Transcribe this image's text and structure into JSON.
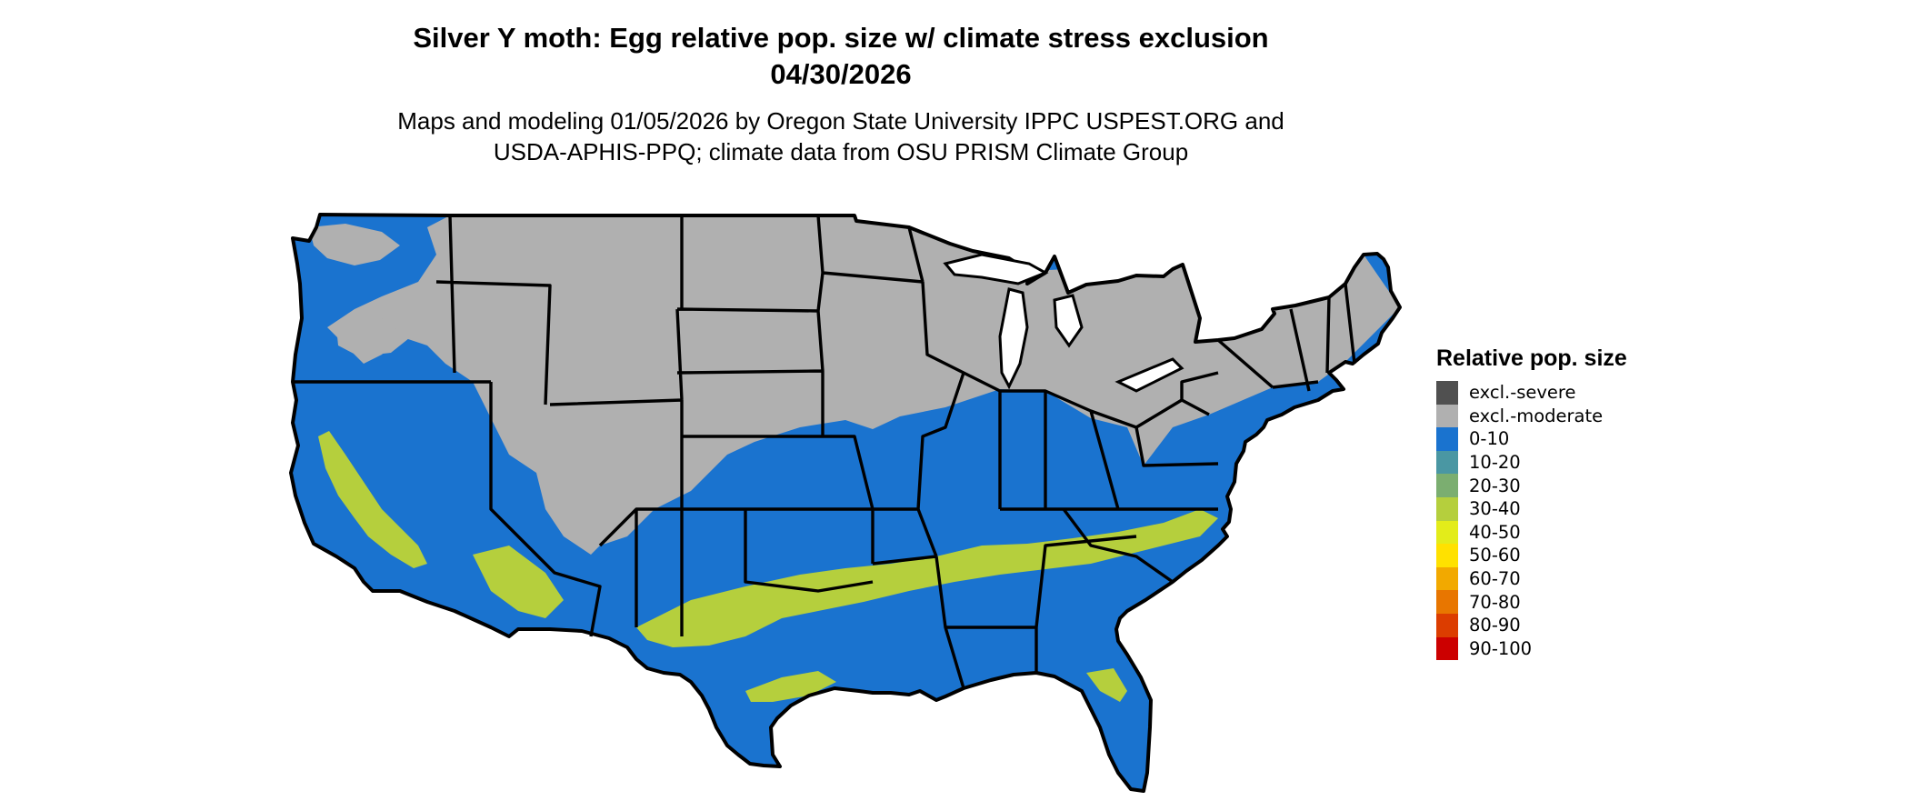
{
  "title_line1": "Silver Y moth: Egg relative pop. size w/ climate stress exclusion",
  "title_line2": "04/30/2026",
  "subtitle_line1": "Maps and modeling 01/05/2026 by Oregon State University IPPC USPEST.ORG and",
  "subtitle_line2": "USDA-APHIS-PPQ; climate data from OSU PRISM Climate Group",
  "legend": {
    "title": "Relative pop. size",
    "items": [
      {
        "label": "excl.-severe",
        "color": "#505050"
      },
      {
        "label": "excl.-moderate",
        "color": "#b0b0b0"
      },
      {
        "label": "0-10",
        "color": "#1a73cf"
      },
      {
        "label": "10-20",
        "color": "#4a97a3"
      },
      {
        "label": "20-30",
        "color": "#7bae70"
      },
      {
        "label": "30-40",
        "color": "#b5cf3d"
      },
      {
        "label": "40-50",
        "color": "#e3ec1a"
      },
      {
        "label": "50-60",
        "color": "#ffe100"
      },
      {
        "label": "60-70",
        "color": "#f2a900"
      },
      {
        "label": "70-80",
        "color": "#e87600"
      },
      {
        "label": "80-90",
        "color": "#dc3d00"
      },
      {
        "label": "90-100",
        "color": "#cc0000"
      }
    ]
  },
  "map": {
    "excluded_color": "#b0b0b0",
    "low_color": "#1a73cf",
    "mid_color": "#b5cf3d",
    "border_color": "#000000",
    "water_color": "#ffffff"
  }
}
